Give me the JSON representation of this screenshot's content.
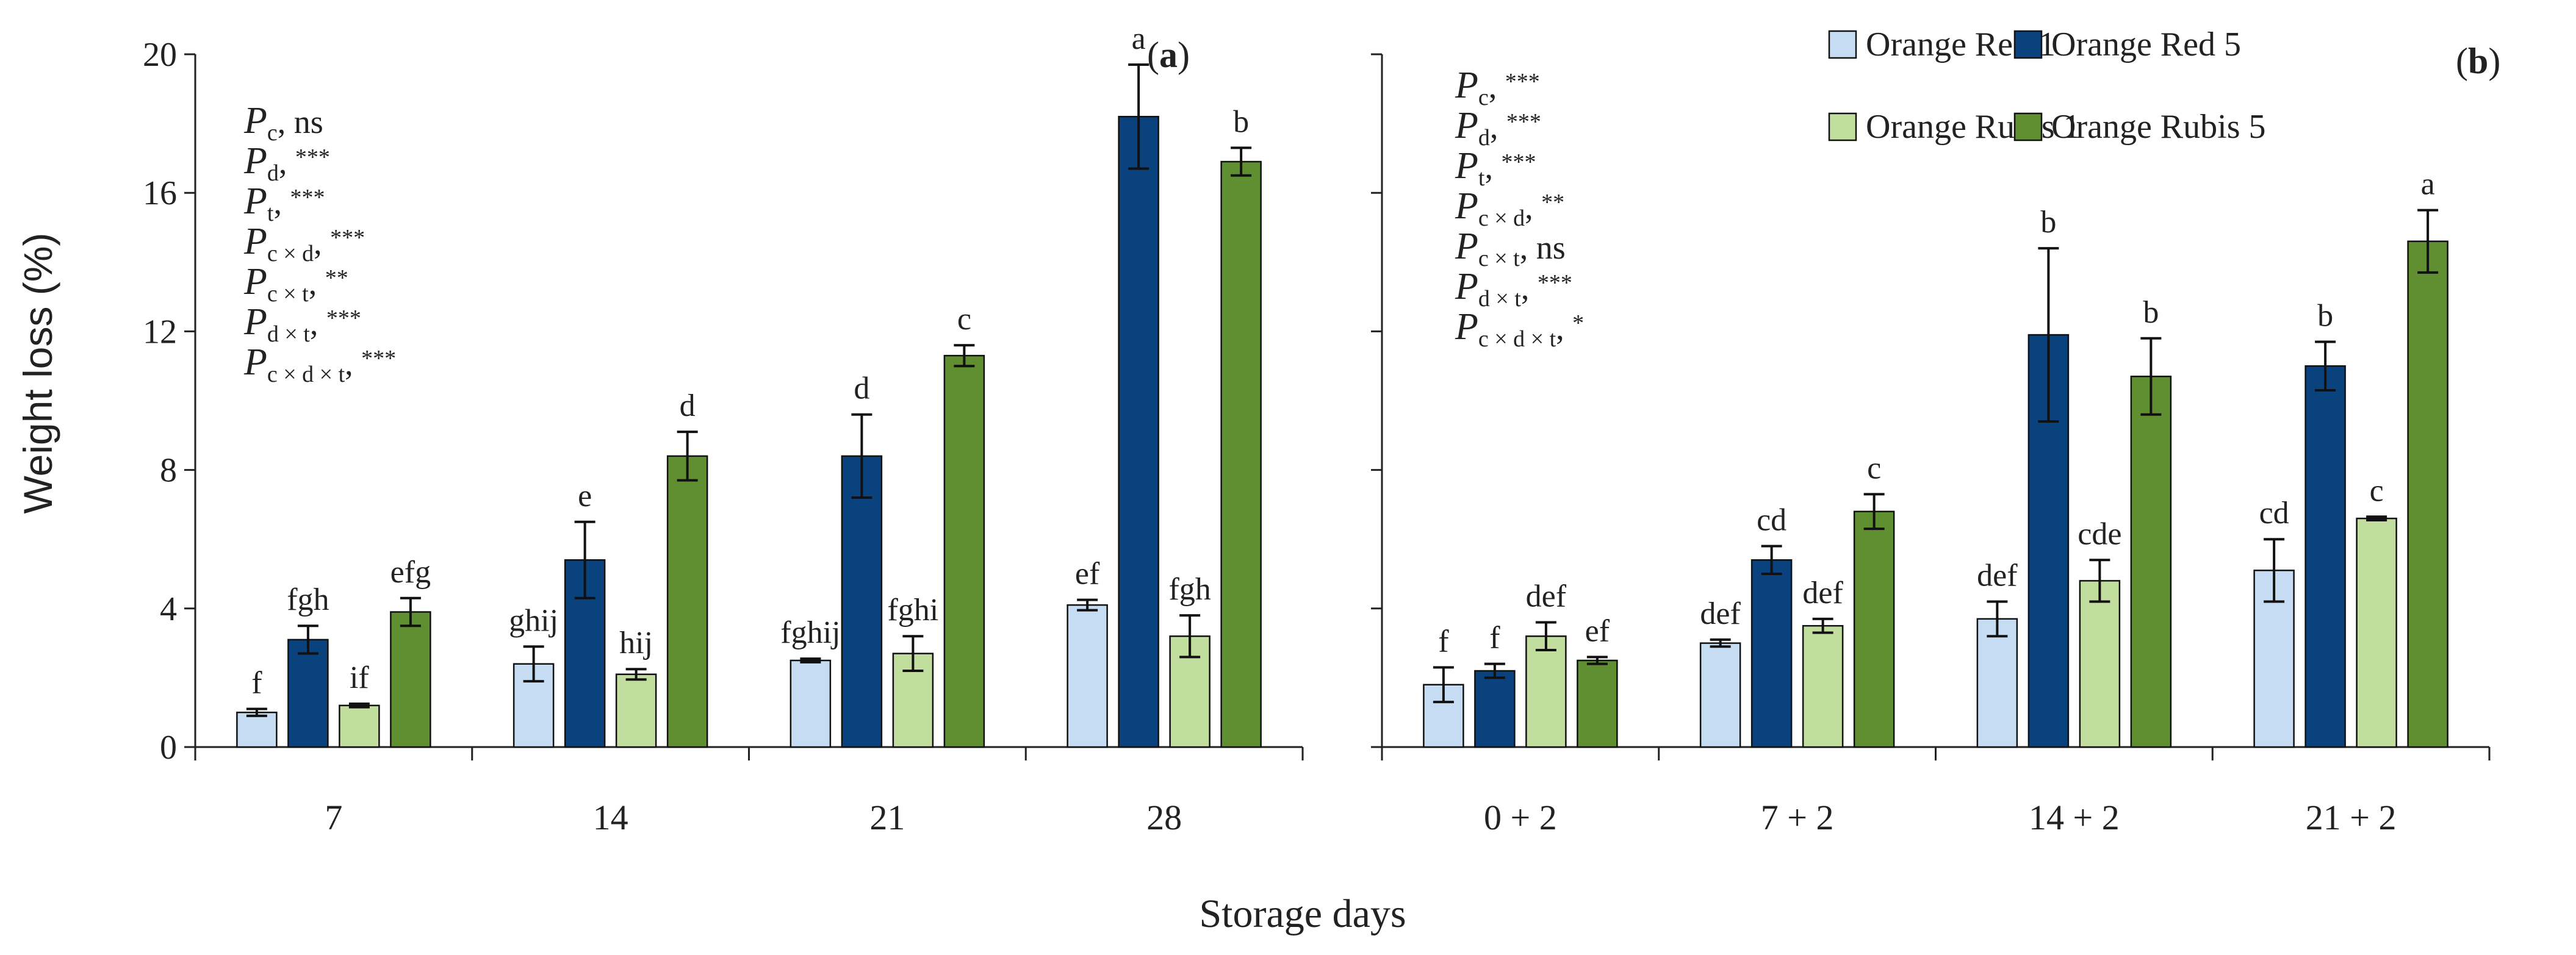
{
  "chart_data": {
    "type": "bar",
    "xlabel": "Storage days",
    "ylabel": "Weight loss (%)",
    "ylim": [
      0,
      20
    ],
    "yticks": [
      "0",
      "4",
      "8",
      "12",
      "16",
      "20"
    ],
    "colors": {
      "Orange Red 1": "#c6dcf2",
      "Orange Red 5": "#0a427d",
      "Orange Rubis 1": "#c2de9e",
      "Orange Rubis 5": "#5f8f30"
    },
    "legend": [
      "Orange Red 1",
      "Orange Red 5",
      "Orange Rubis 1",
      "Orange Rubis 5"
    ],
    "legend_position": "top-right",
    "panels": [
      {
        "label": "(a)",
        "label_letter": "a",
        "categories": [
          "7",
          "14",
          "21",
          "28"
        ],
        "series": [
          {
            "name": "Orange Red 1",
            "values": [
              1.0,
              2.4,
              2.5,
              4.1
            ],
            "errors": [
              0.1,
              0.5,
              0.05,
              0.15
            ],
            "letters": [
              "f",
              "ghij",
              "fghij",
              "ef"
            ]
          },
          {
            "name": "Orange Red 5",
            "values": [
              3.1,
              5.4,
              8.4,
              18.2
            ],
            "errors": [
              0.4,
              1.1,
              1.2,
              1.5
            ],
            "letters": [
              "fgh",
              "e",
              "d",
              "a"
            ]
          },
          {
            "name": "Orange Rubis 1",
            "values": [
              1.2,
              2.1,
              2.7,
              3.2
            ],
            "errors": [
              0.05,
              0.15,
              0.5,
              0.6
            ],
            "letters": [
              "if",
              "hij",
              "fghi",
              "fgh"
            ]
          },
          {
            "name": "Orange Rubis 5",
            "values": [
              3.9,
              8.4,
              11.3,
              16.9
            ],
            "errors": [
              0.4,
              0.7,
              0.3,
              0.4
            ],
            "letters": [
              "efg",
              "d",
              "c",
              "b"
            ]
          }
        ],
        "stats": [
          {
            "sub": "c",
            "sig": "ns"
          },
          {
            "sub": "d",
            "sig": "***"
          },
          {
            "sub": "t",
            "sig": "***"
          },
          {
            "sub": "c × d",
            "sig": "***"
          },
          {
            "sub": "c × t",
            "sig": "**"
          },
          {
            "sub": "d × t",
            "sig": "***"
          },
          {
            "sub": "c × d × t",
            "sig": "***"
          }
        ]
      },
      {
        "label": "(b)",
        "label_letter": "b",
        "categories": [
          "0 + 2",
          "7 + 2",
          "14 + 2",
          "21 + 2"
        ],
        "series": [
          {
            "name": "Orange Red 1",
            "values": [
              1.8,
              3.0,
              3.7,
              5.1
            ],
            "errors": [
              0.5,
              0.1,
              0.5,
              0.9
            ],
            "letters": [
              "f",
              "def",
              "def",
              "cd"
            ]
          },
          {
            "name": "Orange Red 5",
            "values": [
              2.2,
              5.4,
              11.9,
              11.0
            ],
            "errors": [
              0.2,
              0.4,
              2.5,
              0.7
            ],
            "letters": [
              "f",
              "cd",
              "b",
              "b"
            ]
          },
          {
            "name": "Orange Rubis 1",
            "values": [
              3.2,
              3.5,
              4.8,
              6.6
            ],
            "errors": [
              0.4,
              0.2,
              0.6,
              0.05
            ],
            "letters": [
              "def",
              "def",
              "cde",
              "c"
            ]
          },
          {
            "name": "Orange Rubis 5",
            "values": [
              2.5,
              6.8,
              10.7,
              14.6
            ],
            "errors": [
              0.1,
              0.5,
              1.1,
              0.9
            ],
            "letters": [
              "ef",
              "c",
              "b",
              "a"
            ]
          }
        ],
        "stats": [
          {
            "sub": "c",
            "sig": "***"
          },
          {
            "sub": "d",
            "sig": "***"
          },
          {
            "sub": "t",
            "sig": "***"
          },
          {
            "sub": "c × d",
            "sig": "**"
          },
          {
            "sub": "c × t",
            "sig": "ns"
          },
          {
            "sub": "d × t",
            "sig": "***"
          },
          {
            "sub": "c × d × t",
            "sig": "*"
          }
        ]
      }
    ]
  }
}
